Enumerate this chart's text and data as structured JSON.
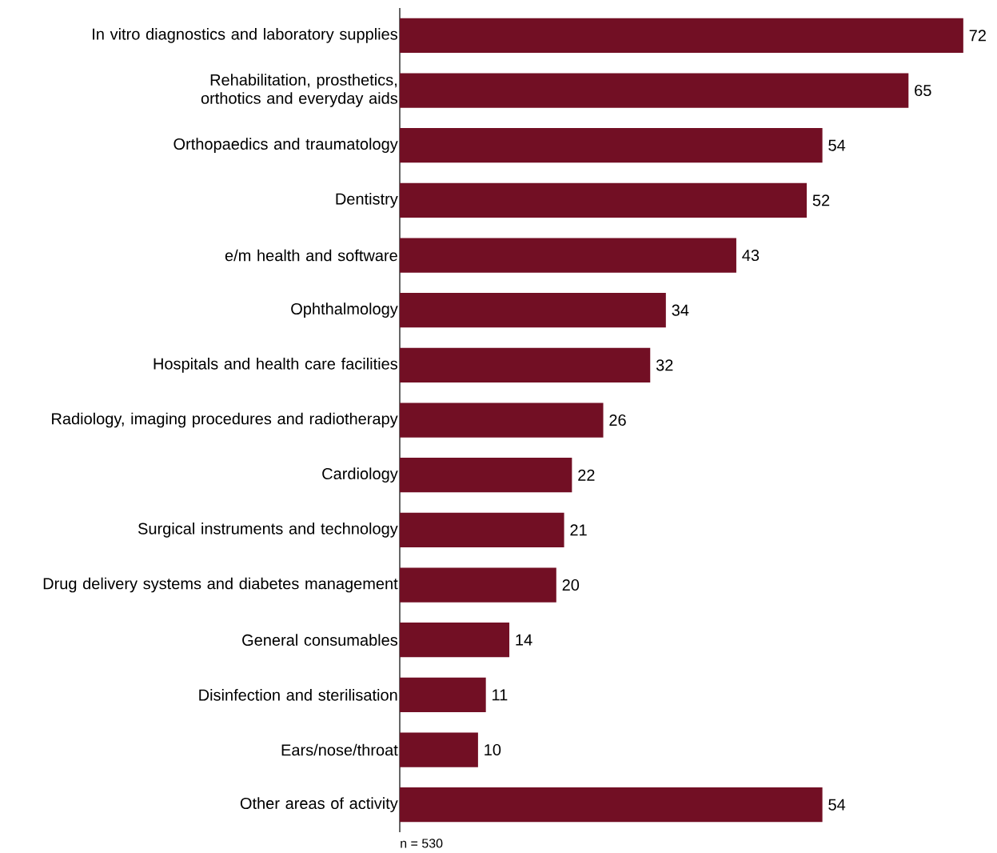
{
  "chart_data": {
    "type": "bar",
    "orientation": "horizontal",
    "categories": [
      "In vitro diagnostics and laboratory supplies",
      "Rehabilitation, prosthetics, orthotics and everyday aids",
      "Orthopaedics and traumatology",
      "Dentistry",
      "e/m health and software",
      "Ophthalmology",
      "Hospitals and health care facilities",
      "Radiology, imaging procedures and radiotherapy",
      "Cardiology",
      "Surgical instruments and technology",
      "Drug delivery systems and diabetes management",
      "General consumables",
      "Disinfection and sterilisation",
      "Ears/nose/throat",
      "Other areas of activity"
    ],
    "values": [
      72,
      65,
      54,
      52,
      43,
      34,
      32,
      26,
      22,
      21,
      20,
      14,
      11,
      10,
      54
    ],
    "color": "#720f24",
    "data_labels": true,
    "annotations": [
      "n = 530"
    ]
  }
}
